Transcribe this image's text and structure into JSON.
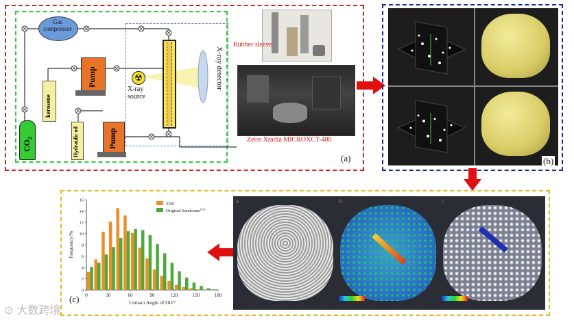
{
  "panel_a": {
    "gas_compressor": "Gas\ncompressor",
    "pump_top": "Pump",
    "pump_bottom": "Pump",
    "kerosene": "kerosene",
    "co2": "CO",
    "co2_sub": "2",
    "hydraulic_oil": "Hydraulic oil",
    "xray_source": "X-ray\nsource",
    "xray_detector": "X-ray detector",
    "rubber_sleeve": "Rubber sleeve",
    "zeiss": "Zeiss Xradia MICROXCT-400",
    "label": "(a)"
  },
  "panel_b": {
    "label": "(b)"
  },
  "panel_c": {
    "label": "(c)",
    "sub_a": "a",
    "sub_b": "b",
    "sub_c": "c",
    "watermark": "大数跨境"
  },
  "colors": {
    "red_border": "#d42020",
    "green_border": "#2ecc2e",
    "blue_border": "#1a2a9a",
    "yellow_border": "#e8b820",
    "blue_dash": "#4a7fc8",
    "pump_orange": "#e8742a",
    "kerosene_yellow": "#f5f0a0",
    "co2_green": "#33cc33",
    "bar_3dp": "#f08c28",
    "bar_orig": "#4aaa3a",
    "arrow_red": "#e01010"
  },
  "chart_data": {
    "type": "bar",
    "x": [
      0,
      10,
      20,
      30,
      40,
      50,
      60,
      70,
      80,
      90,
      100,
      110,
      120,
      130,
      140,
      150,
      160,
      170
    ],
    "xlabel": "Contact Angle of Oil/°",
    "ylabel": "Frequency/%",
    "ylim": [
      0,
      16
    ],
    "xlim": [
      0,
      180
    ],
    "xticks": [
      "0",
      "30",
      "60",
      "90",
      "120",
      "150",
      "180"
    ],
    "yticks": [
      "0",
      "2",
      "4",
      "6",
      "8",
      "10",
      "12",
      "14",
      "16"
    ],
    "legend_position": "top-right",
    "series": [
      {
        "name": "3DP",
        "values": [
          3.2,
          5.4,
          10.3,
          12.1,
          14.5,
          13.2,
          10.1,
          7.5,
          5.6,
          3.6,
          2.5,
          1.6,
          0.9,
          0.5,
          0.3,
          0.1,
          0,
          0
        ]
      },
      {
        "name": "Original Sandstone",
        "sup": "[31]",
        "values": [
          4.1,
          4.8,
          6.3,
          7.6,
          9.2,
          10.4,
          10.8,
          10.6,
          9.7,
          8.1,
          6.5,
          4.8,
          3.3,
          2.2,
          1.3,
          0.7,
          0.3,
          0.1
        ]
      }
    ]
  }
}
